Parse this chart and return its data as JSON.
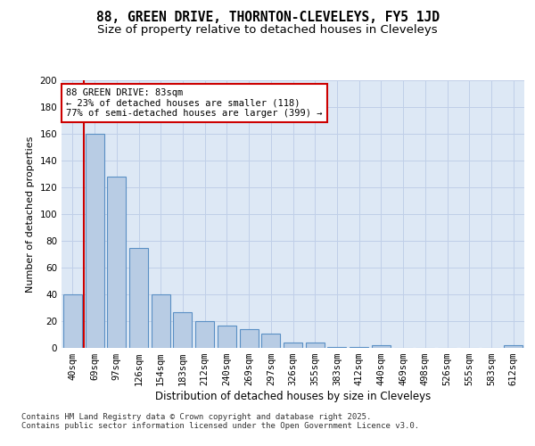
{
  "title1": "88, GREEN DRIVE, THORNTON-CLEVELEYS, FY5 1JD",
  "title2": "Size of property relative to detached houses in Cleveleys",
  "xlabel": "Distribution of detached houses by size in Cleveleys",
  "ylabel": "Number of detached properties",
  "categories": [
    "40sqm",
    "69sqm",
    "97sqm",
    "126sqm",
    "154sqm",
    "183sqm",
    "212sqm",
    "240sqm",
    "269sqm",
    "297sqm",
    "326sqm",
    "355sqm",
    "383sqm",
    "412sqm",
    "440sqm",
    "469sqm",
    "498sqm",
    "526sqm",
    "555sqm",
    "583sqm",
    "612sqm"
  ],
  "values": [
    40,
    160,
    128,
    75,
    40,
    27,
    20,
    17,
    14,
    11,
    4,
    4,
    1,
    1,
    2,
    0,
    0,
    0,
    0,
    0,
    2
  ],
  "bar_color": "#b8cce4",
  "bar_edge_color": "#5a8fc4",
  "vline_x": 0.5,
  "vline_color": "#cc0000",
  "annotation_text": "88 GREEN DRIVE: 83sqm\n← 23% of detached houses are smaller (118)\n77% of semi-detached houses are larger (399) →",
  "annotation_box_color": "#ffffff",
  "annotation_box_edge": "#cc0000",
  "ylim": [
    0,
    200
  ],
  "yticks": [
    0,
    20,
    40,
    60,
    80,
    100,
    120,
    140,
    160,
    180,
    200
  ],
  "background_color": "#dde8f5",
  "grid_color": "#c0cfe8",
  "footer": "Contains HM Land Registry data © Crown copyright and database right 2025.\nContains public sector information licensed under the Open Government Licence v3.0.",
  "title_fontsize": 10.5,
  "subtitle_fontsize": 9.5,
  "footer_fontsize": 6.5,
  "tick_fontsize": 7.5,
  "ylabel_fontsize": 8,
  "xlabel_fontsize": 8.5,
  "annot_fontsize": 7.5
}
